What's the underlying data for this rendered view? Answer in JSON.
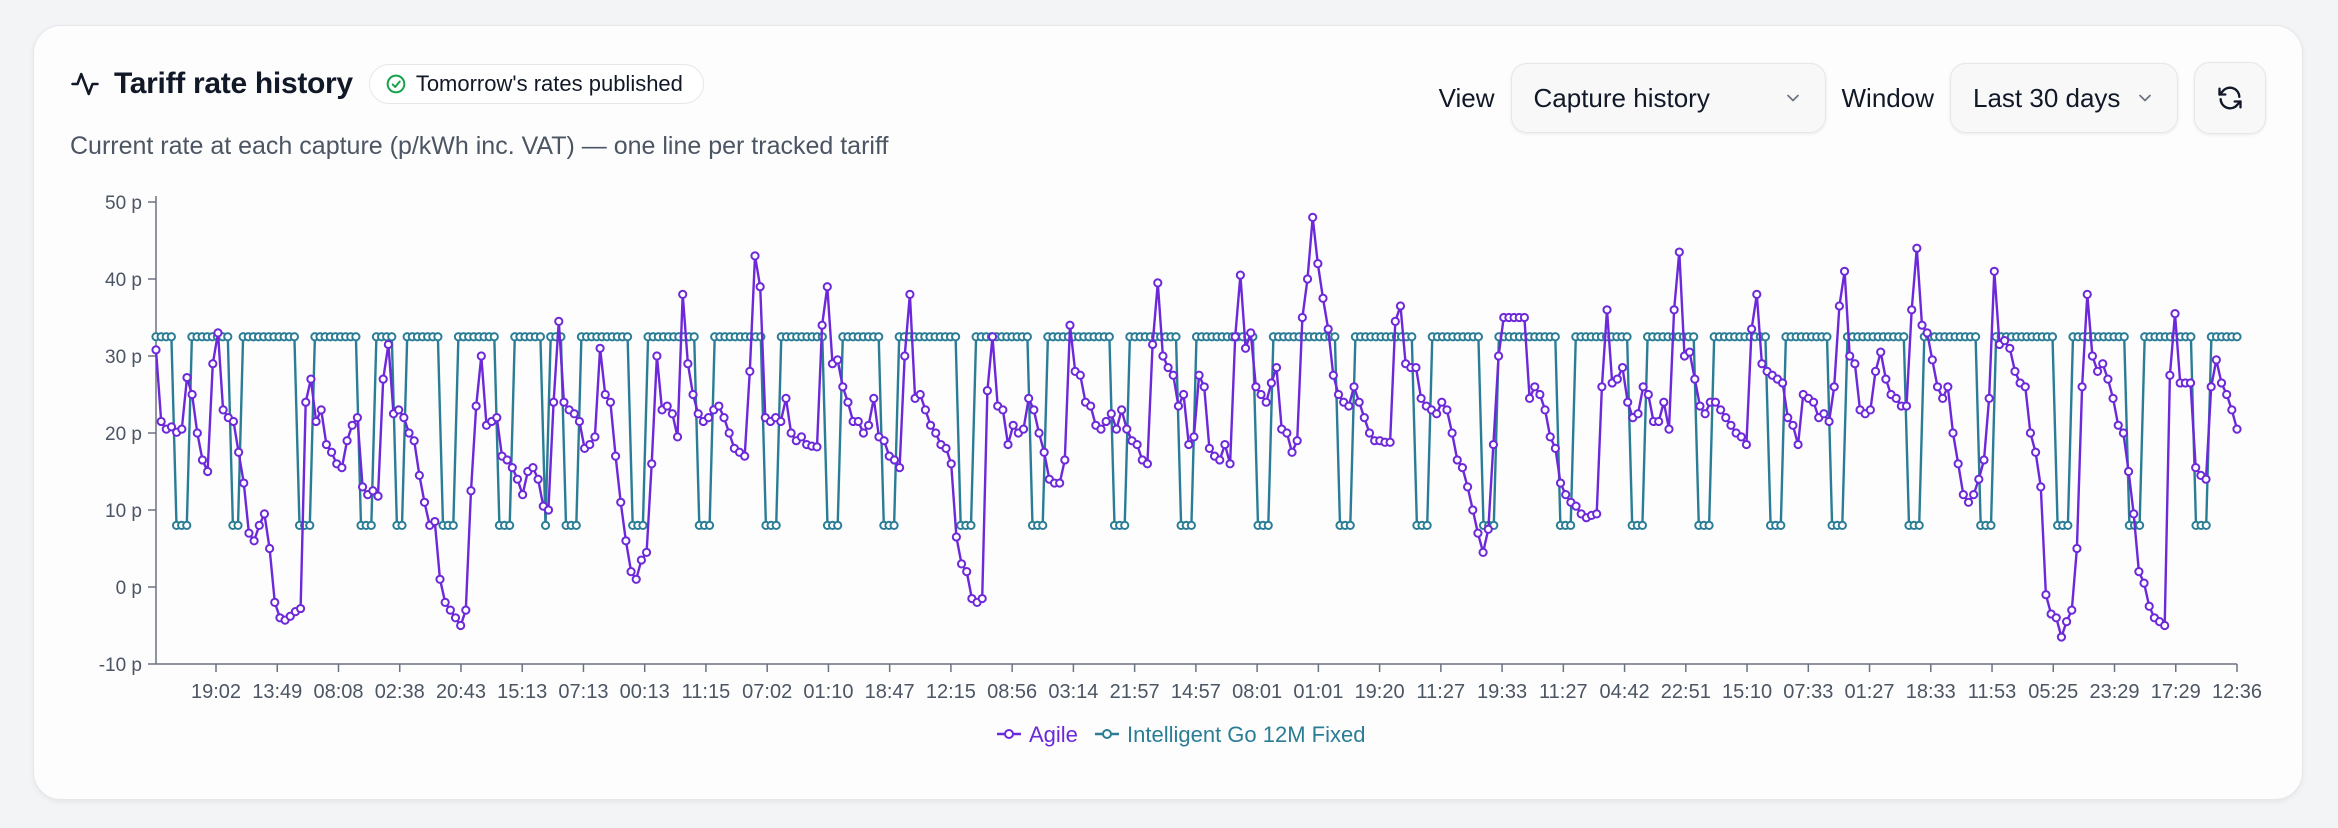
{
  "header": {
    "title": "Tariff rate history",
    "badge": "Tomorrow's rates published",
    "subtitle": "Current rate at each capture (p/kWh inc. VAT) — one line per tracked tariff"
  },
  "controls": {
    "view_label": "View",
    "view_value": "Capture history",
    "window_label": "Window",
    "window_value": "Last 30 days"
  },
  "colors": {
    "agile": "#6d28d9",
    "intelligent_go": "#2b7d96",
    "axis": "#6b7280"
  },
  "icons": {
    "title": "activity-icon",
    "badge": "check-circle-icon",
    "refresh": "refresh-icon",
    "dropdown": "chevron-down-icon"
  },
  "chart_data": {
    "type": "line",
    "title": "",
    "xlabel": "",
    "ylabel": "",
    "y_unit_suffix": " p",
    "ylim": [
      -10,
      50
    ],
    "yticks": [
      -10,
      0,
      10,
      20,
      30,
      40,
      50
    ],
    "grid": false,
    "legend_position": "bottom-center",
    "x_tick_labels": [
      "19:02",
      "13:49",
      "08:08",
      "02:38",
      "20:43",
      "15:13",
      "07:13",
      "00:13",
      "11:15",
      "07:02",
      "01:10",
      "18:47",
      "12:15",
      "08:56",
      "03:14",
      "21:57",
      "14:57",
      "08:01",
      "01:01",
      "19:20",
      "11:27",
      "19:33",
      "11:27",
      "04:42",
      "22:51",
      "15:10",
      "07:33",
      "01:27",
      "18:33",
      "11:53",
      "05:25",
      "23:29",
      "17:29",
      "12:36"
    ],
    "series": [
      {
        "name": "Agile",
        "color": "#6d28d9",
        "values": [
          30.8,
          21.5,
          20.5,
          20.8,
          20.1,
          20.5,
          27.2,
          25.0,
          20.0,
          16.5,
          15.0,
          29.0,
          33.0,
          23.0,
          22.0,
          21.5,
          17.5,
          13.5,
          7.0,
          6.0,
          8.0,
          9.5,
          5.0,
          -2.0,
          -4.0,
          -4.3,
          -3.8,
          -3.2,
          -2.8,
          24.0,
          27.0,
          21.5,
          23.0,
          18.5,
          17.5,
          16.0,
          15.5,
          19.0,
          21.0,
          22.0,
          13.0,
          12.0,
          12.5,
          11.8,
          27.0,
          31.5,
          22.5,
          23.0,
          22.0,
          20.0,
          19.0,
          14.5,
          11.0,
          8.0,
          8.5,
          1.0,
          -2.0,
          -3.0,
          -4.0,
          -5.0,
          -3.0,
          12.5,
          23.5,
          30.0,
          21.0,
          21.5,
          22.0,
          17.0,
          16.5,
          15.5,
          14.0,
          12.0,
          15.0,
          15.5,
          14.0,
          10.5,
          10.0,
          24.0,
          34.5,
          24.0,
          23.0,
          22.5,
          21.5,
          18.0,
          18.5,
          19.5,
          31.0,
          25.0,
          24.0,
          17.0,
          11.0,
          6.0,
          2.0,
          1.0,
          3.5,
          4.5,
          16.0,
          30.0,
          23.0,
          23.5,
          22.5,
          19.5,
          38.0,
          29.0,
          25.0,
          22.5,
          21.5,
          22.0,
          23.0,
          23.5,
          22.0,
          20.0,
          18.0,
          17.5,
          17.0,
          28.0,
          43.0,
          39.0,
          22.0,
          21.5,
          22.0,
          21.5,
          24.5,
          20.0,
          19.0,
          19.5,
          18.5,
          18.3,
          18.2,
          34.0,
          39.0,
          29.0,
          29.5,
          26.0,
          24.0,
          21.5,
          21.5,
          20.0,
          21.0,
          24.5,
          19.5,
          19.0,
          17.0,
          16.5,
          15.5,
          30.0,
          38.0,
          24.5,
          25.0,
          23.0,
          21.0,
          20.0,
          18.5,
          18.0,
          16.0,
          6.5,
          3.0,
          2.0,
          -1.5,
          -2.0,
          -1.5,
          25.5,
          32.5,
          23.5,
          23.0,
          18.5,
          21.0,
          20.0,
          20.5,
          24.5,
          23.0,
          20.0,
          17.5,
          14.0,
          13.5,
          13.5,
          16.5,
          34.0,
          28.0,
          27.5,
          24.0,
          23.5,
          21.0,
          20.5,
          21.5,
          22.5,
          20.5,
          23.0,
          20.5,
          19.0,
          18.5,
          16.5,
          16.0,
          31.5,
          39.5,
          30.0,
          28.5,
          27.5,
          23.5,
          25.0,
          18.5,
          19.5,
          27.5,
          26.0,
          18.0,
          17.0,
          16.5,
          18.5,
          16.0,
          32.5,
          40.5,
          31.0,
          33.0,
          26.0,
          25.0,
          24.0,
          26.5,
          28.5,
          20.5,
          20.0,
          17.5,
          19.0,
          35.0,
          40.0,
          48.0,
          42.0,
          37.5,
          33.5,
          27.5,
          25.0,
          24.0,
          23.5,
          26.0,
          24.0,
          22.0,
          20.0,
          19.0,
          19.0,
          18.8,
          18.8,
          34.5,
          36.5,
          29.0,
          28.5,
          28.5,
          24.5,
          23.5,
          23.0,
          22.5,
          24.0,
          23.0,
          20.0,
          16.5,
          15.5,
          13.0,
          10.0,
          7.0,
          4.5,
          7.5,
          18.5,
          30.0,
          35.0,
          35.0,
          35.0,
          35.0,
          35.0,
          24.5,
          26.0,
          25.0,
          23.0,
          19.5,
          18.0,
          13.5,
          12.0,
          11.0,
          10.5,
          9.5,
          9.0,
          9.3,
          9.5,
          26.0,
          36.0,
          26.5,
          27.0,
          28.5,
          24.0,
          22.0,
          22.5,
          26.0,
          25.0,
          21.5,
          21.5,
          24.0,
          20.5,
          36.0,
          43.5,
          30.0,
          30.5,
          27.0,
          23.5,
          22.5,
          24.0,
          24.0,
          23.0,
          22.0,
          21.0,
          20.0,
          19.5,
          18.5,
          33.5,
          38.0,
          29.0,
          28.0,
          27.5,
          27.0,
          26.5,
          22.0,
          21.0,
          18.5,
          25.0,
          24.5,
          24.0,
          22.0,
          22.5,
          21.5,
          26.0,
          36.5,
          41.0,
          30.0,
          29.0,
          23.0,
          22.5,
          23.0,
          28.0,
          30.5,
          27.0,
          25.0,
          24.5,
          23.5,
          23.5,
          36.0,
          44.0,
          34.0,
          33.0,
          29.5,
          26.0,
          24.5,
          26.0,
          20.0,
          16.0,
          12.0,
          11.0,
          12.0,
          14.0,
          16.5,
          24.5,
          41.0,
          31.5,
          32.0,
          31.0,
          28.0,
          26.5,
          26.0,
          20.0,
          17.5,
          13.0,
          -1.0,
          -3.5,
          -4.0,
          -6.5,
          -4.5,
          -3.0,
          5.0,
          26.0,
          38.0,
          30.0,
          28.0,
          29.0,
          27.0,
          24.5,
          21.0,
          20.0,
          15.0,
          9.5,
          2.0,
          0.5,
          -2.5,
          -4.0,
          -4.5,
          -5.0,
          27.5,
          35.5,
          26.5,
          26.5,
          26.5,
          15.5,
          14.5,
          14.0,
          26.0,
          29.5,
          26.5,
          25.0,
          23.0,
          20.5
        ]
      },
      {
        "name": "Intelligent Go 12M Fixed",
        "color": "#2b7d96",
        "segments": [
          [
            32.5,
            4
          ],
          [
            8.0,
            3
          ],
          [
            32.5,
            8
          ],
          [
            8.0,
            2
          ],
          [
            32.5,
            11
          ],
          [
            8.0,
            3
          ],
          [
            32.5,
            9
          ],
          [
            8.0,
            3
          ],
          [
            32.5,
            4
          ],
          [
            8.0,
            2
          ],
          [
            32.5,
            7
          ],
          [
            8.0,
            3
          ],
          [
            32.5,
            8
          ],
          [
            8.0,
            3
          ],
          [
            32.5,
            6
          ],
          [
            8.0,
            1
          ],
          [
            32.5,
            3
          ],
          [
            8.0,
            3
          ],
          [
            32.5,
            10
          ],
          [
            8.0,
            3
          ],
          [
            32.5,
            10
          ],
          [
            8.0,
            3
          ],
          [
            32.5,
            10
          ],
          [
            8.0,
            3
          ],
          [
            32.5,
            9
          ],
          [
            8.0,
            3
          ],
          [
            32.5,
            8
          ],
          [
            8.0,
            3
          ],
          [
            32.5,
            12
          ],
          [
            8.0,
            3
          ],
          [
            32.5,
            11
          ],
          [
            8.0,
            3
          ],
          [
            32.5,
            13
          ],
          [
            8.0,
            3
          ],
          [
            32.5,
            10
          ],
          [
            8.0,
            3
          ],
          [
            32.5,
            12
          ],
          [
            8.0,
            3
          ],
          [
            32.5,
            13
          ],
          [
            8.0,
            3
          ],
          [
            32.5,
            12
          ],
          [
            8.0,
            3
          ],
          [
            32.5,
            10
          ],
          [
            8.0,
            3
          ],
          [
            32.5,
            12
          ],
          [
            8.0,
            3
          ],
          [
            32.5,
            11
          ],
          [
            8.0,
            3
          ],
          [
            32.5,
            10
          ],
          [
            8.0,
            3
          ],
          [
            32.5,
            11
          ],
          [
            8.0,
            3
          ],
          [
            32.5,
            9
          ],
          [
            8.0,
            3
          ],
          [
            32.5,
            12
          ],
          [
            8.0,
            3
          ],
          [
            32.5,
            11
          ],
          [
            8.0,
            3
          ],
          [
            32.5,
            12
          ],
          [
            8.0,
            3
          ],
          [
            32.5,
            11
          ],
          [
            8.0,
            3
          ],
          [
            32.5,
            10
          ],
          [
            8.0,
            3
          ],
          [
            32.5,
            6
          ]
        ]
      }
    ]
  }
}
